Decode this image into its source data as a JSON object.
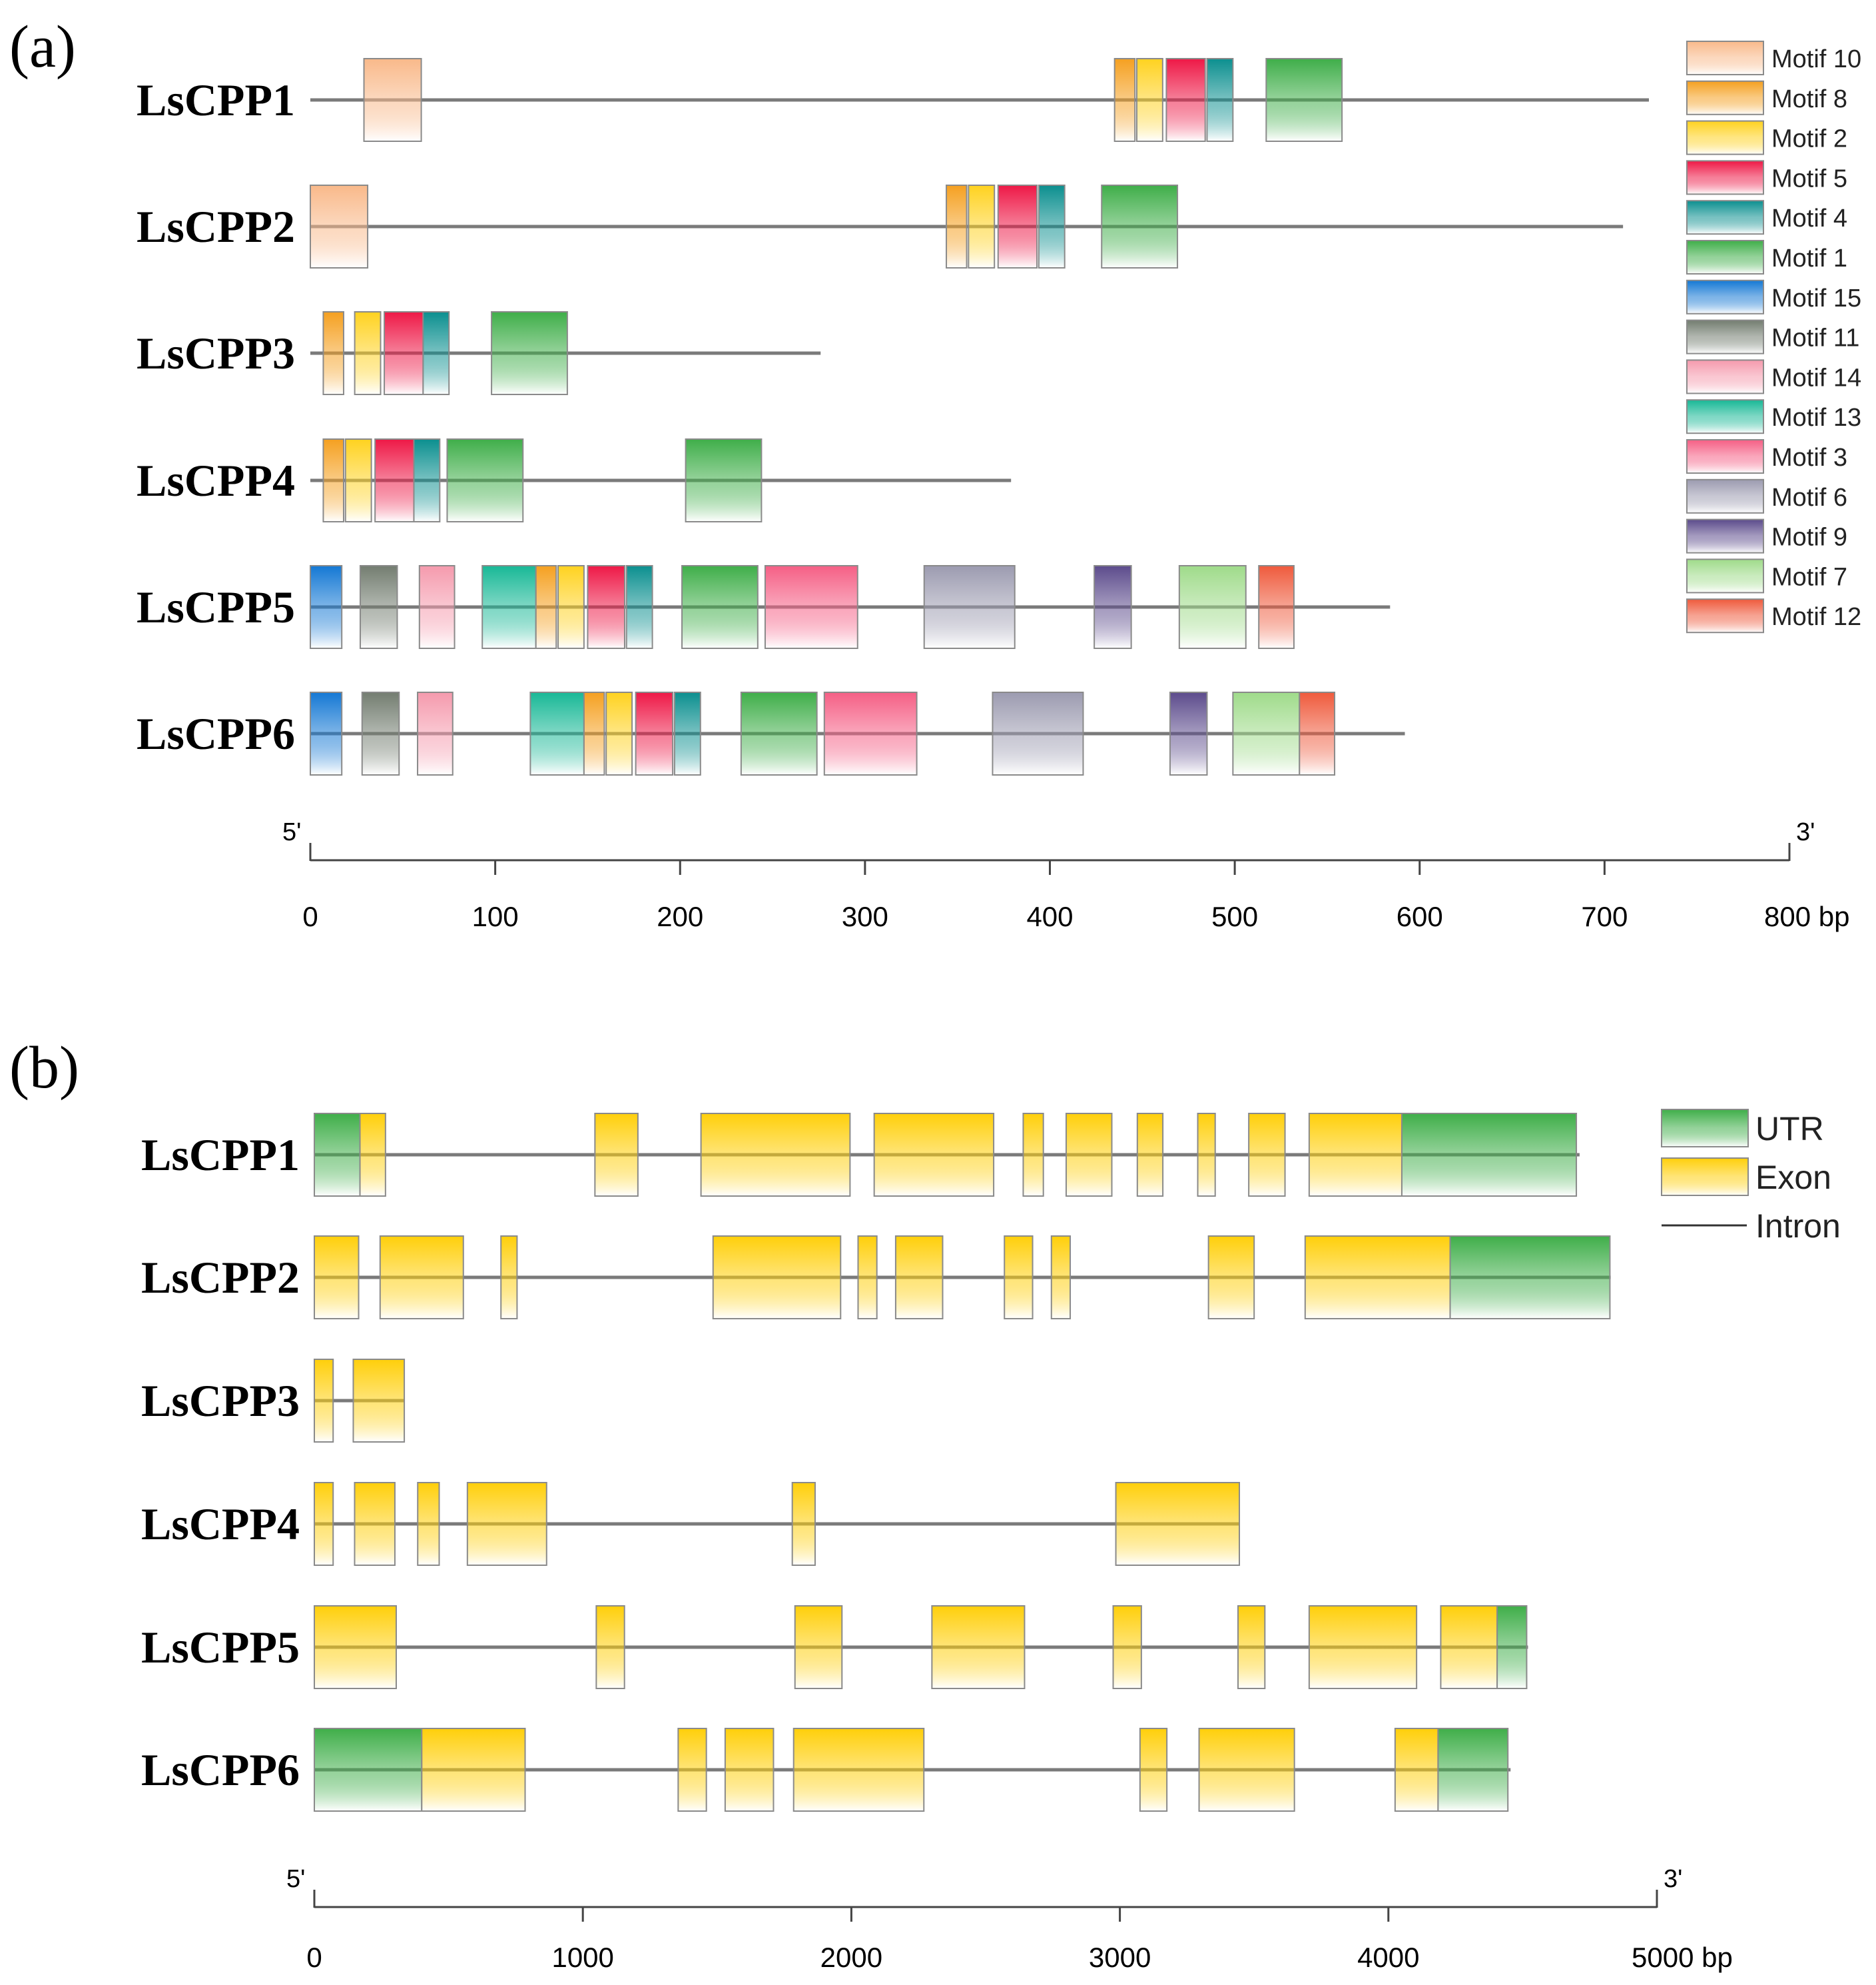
{
  "panel_a": {
    "label": "(a)",
    "axis": {
      "start": 0,
      "end": 800,
      "ticks": [
        0,
        100,
        200,
        300,
        400,
        500,
        600,
        700,
        800
      ],
      "unit": "bp",
      "five_prime": "5'",
      "three_prime": "3'"
    },
    "legend": [
      {
        "name": "Motif 10",
        "color": "#f9b98a"
      },
      {
        "name": "Motif 8",
        "color": "#f5a020"
      },
      {
        "name": "Motif 2",
        "color": "#ffd21f"
      },
      {
        "name": "Motif 5",
        "color": "#ee1846"
      },
      {
        "name": "Motif 4",
        "color": "#0b8f8f"
      },
      {
        "name": "Motif 1",
        "color": "#3fae49"
      },
      {
        "name": "Motif 15",
        "color": "#1478d4"
      },
      {
        "name": "Motif 11",
        "color": "#737d70"
      },
      {
        "name": "Motif 14",
        "color": "#f59aad"
      },
      {
        "name": "Motif 13",
        "color": "#18b896"
      },
      {
        "name": "Motif 3",
        "color": "#f55f85"
      },
      {
        "name": "Motif 6",
        "color": "#9c9bb0"
      },
      {
        "name": "Motif 9",
        "color": "#5c4b8c"
      },
      {
        "name": "Motif 7",
        "color": "#9fdb8a"
      },
      {
        "name": "Motif 12",
        "color": "#ef5a3c"
      }
    ],
    "genes": [
      {
        "name": "LsCPP1",
        "length": 724,
        "motifs": [
          {
            "motif": "Motif 10",
            "start": 29,
            "end": 60
          },
          {
            "motif": "Motif 8",
            "start": 435,
            "end": 446
          },
          {
            "motif": "Motif 2",
            "start": 447,
            "end": 461
          },
          {
            "motif": "Motif 5",
            "start": 463,
            "end": 484
          },
          {
            "motif": "Motif 4",
            "start": 485,
            "end": 499
          },
          {
            "motif": "Motif 1",
            "start": 517,
            "end": 558
          }
        ]
      },
      {
        "name": "LsCPP2",
        "length": 710,
        "motifs": [
          {
            "motif": "Motif 10",
            "start": 0,
            "end": 31
          },
          {
            "motif": "Motif 8",
            "start": 344,
            "end": 355
          },
          {
            "motif": "Motif 2",
            "start": 356,
            "end": 370
          },
          {
            "motif": "Motif 5",
            "start": 372,
            "end": 393
          },
          {
            "motif": "Motif 4",
            "start": 394,
            "end": 408
          },
          {
            "motif": "Motif 1",
            "start": 428,
            "end": 469
          }
        ]
      },
      {
        "name": "LsCPP3",
        "length": 276,
        "motifs": [
          {
            "motif": "Motif 8",
            "start": 7,
            "end": 18
          },
          {
            "motif": "Motif 2",
            "start": 24,
            "end": 38
          },
          {
            "motif": "Motif 5",
            "start": 40,
            "end": 61
          },
          {
            "motif": "Motif 4",
            "start": 61,
            "end": 75
          },
          {
            "motif": "Motif 1",
            "start": 98,
            "end": 139
          }
        ]
      },
      {
        "name": "LsCPP4",
        "length": 379,
        "motifs": [
          {
            "motif": "Motif 8",
            "start": 7,
            "end": 18
          },
          {
            "motif": "Motif 2",
            "start": 19,
            "end": 33
          },
          {
            "motif": "Motif 5",
            "start": 35,
            "end": 56
          },
          {
            "motif": "Motif 4",
            "start": 56,
            "end": 70
          },
          {
            "motif": "Motif 1",
            "start": 74,
            "end": 115
          },
          {
            "motif": "Motif 1",
            "start": 203,
            "end": 244
          }
        ]
      },
      {
        "name": "LsCPP5",
        "length": 584,
        "motifs": [
          {
            "motif": "Motif 15",
            "start": 0,
            "end": 17
          },
          {
            "motif": "Motif 11",
            "start": 27,
            "end": 47
          },
          {
            "motif": "Motif 14",
            "start": 59,
            "end": 78
          },
          {
            "motif": "Motif 13",
            "start": 93,
            "end": 122
          },
          {
            "motif": "Motif 8",
            "start": 122,
            "end": 133
          },
          {
            "motif": "Motif 2",
            "start": 134,
            "end": 148
          },
          {
            "motif": "Motif 5",
            "start": 150,
            "end": 170
          },
          {
            "motif": "Motif 4",
            "start": 171,
            "end": 185
          },
          {
            "motif": "Motif 1",
            "start": 201,
            "end": 242
          },
          {
            "motif": "Motif 3",
            "start": 246,
            "end": 296
          },
          {
            "motif": "Motif 6",
            "start": 332,
            "end": 381
          },
          {
            "motif": "Motif 9",
            "start": 424,
            "end": 444
          },
          {
            "motif": "Motif 7",
            "start": 470,
            "end": 506
          },
          {
            "motif": "Motif 12",
            "start": 513,
            "end": 532
          }
        ]
      },
      {
        "name": "LsCPP6",
        "length": 592,
        "motifs": [
          {
            "motif": "Motif 15",
            "start": 0,
            "end": 17
          },
          {
            "motif": "Motif 11",
            "start": 28,
            "end": 48
          },
          {
            "motif": "Motif 14",
            "start": 58,
            "end": 77
          },
          {
            "motif": "Motif 13",
            "start": 119,
            "end": 148
          },
          {
            "motif": "Motif 8",
            "start": 148,
            "end": 159
          },
          {
            "motif": "Motif 2",
            "start": 160,
            "end": 174
          },
          {
            "motif": "Motif 5",
            "start": 176,
            "end": 196
          },
          {
            "motif": "Motif 4",
            "start": 197,
            "end": 211
          },
          {
            "motif": "Motif 1",
            "start": 233,
            "end": 274
          },
          {
            "motif": "Motif 3",
            "start": 278,
            "end": 328
          },
          {
            "motif": "Motif 6",
            "start": 369,
            "end": 418
          },
          {
            "motif": "Motif 9",
            "start": 465,
            "end": 485
          },
          {
            "motif": "Motif 7",
            "start": 499,
            "end": 535
          },
          {
            "motif": "Motif 12",
            "start": 535,
            "end": 554
          }
        ]
      }
    ]
  },
  "panel_b": {
    "label": "(b)",
    "axis": {
      "start": 0,
      "end": 5000,
      "ticks": [
        0,
        1000,
        2000,
        3000,
        4000,
        5000
      ],
      "unit": "bp",
      "five_prime": "5'",
      "three_prime": "3'"
    },
    "legend": [
      {
        "name": "UTR",
        "type": "UTR",
        "color": "#3fae49"
      },
      {
        "name": "Exon",
        "type": "Exon",
        "color": "#ffcf0a"
      },
      {
        "name": "Intron",
        "type": "Intron",
        "color": "#333333"
      }
    ],
    "genes": [
      {
        "name": "LsCPP1",
        "length": 4712,
        "features": [
          {
            "type": "UTR",
            "start": 0,
            "end": 170
          },
          {
            "type": "Exon",
            "start": 170,
            "end": 265
          },
          {
            "type": "Exon",
            "start": 1045,
            "end": 1205
          },
          {
            "type": "Exon",
            "start": 1440,
            "end": 1995
          },
          {
            "type": "Exon",
            "start": 2085,
            "end": 2530
          },
          {
            "type": "Exon",
            "start": 2640,
            "end": 2715
          },
          {
            "type": "Exon",
            "start": 2800,
            "end": 2970
          },
          {
            "type": "Exon",
            "start": 3065,
            "end": 3160
          },
          {
            "type": "Exon",
            "start": 3290,
            "end": 3355
          },
          {
            "type": "Exon",
            "start": 3480,
            "end": 3615
          },
          {
            "type": "Exon",
            "start": 3705,
            "end": 4050
          },
          {
            "type": "UTR",
            "start": 4050,
            "end": 4700
          }
        ]
      },
      {
        "name": "LsCPP2",
        "length": 4828,
        "features": [
          {
            "type": "Exon",
            "start": 0,
            "end": 165
          },
          {
            "type": "Exon",
            "start": 245,
            "end": 555
          },
          {
            "type": "Exon",
            "start": 695,
            "end": 755
          },
          {
            "type": "Exon",
            "start": 1485,
            "end": 1960
          },
          {
            "type": "Exon",
            "start": 2025,
            "end": 2095
          },
          {
            "type": "Exon",
            "start": 2165,
            "end": 2340
          },
          {
            "type": "Exon",
            "start": 2570,
            "end": 2675
          },
          {
            "type": "Exon",
            "start": 2745,
            "end": 2815
          },
          {
            "type": "Exon",
            "start": 3330,
            "end": 3500
          },
          {
            "type": "Exon",
            "start": 3690,
            "end": 4230
          },
          {
            "type": "UTR",
            "start": 4230,
            "end": 4825
          }
        ]
      },
      {
        "name": "LsCPP3",
        "length": 335,
        "features": [
          {
            "type": "Exon",
            "start": 0,
            "end": 70
          },
          {
            "type": "Exon",
            "start": 145,
            "end": 335
          }
        ]
      },
      {
        "name": "LsCPP4",
        "length": 3445,
        "features": [
          {
            "type": "Exon",
            "start": 0,
            "end": 70
          },
          {
            "type": "Exon",
            "start": 150,
            "end": 300
          },
          {
            "type": "Exon",
            "start": 385,
            "end": 465
          },
          {
            "type": "Exon",
            "start": 570,
            "end": 865
          },
          {
            "type": "Exon",
            "start": 1780,
            "end": 1865
          },
          {
            "type": "Exon",
            "start": 2985,
            "end": 3445
          }
        ]
      },
      {
        "name": "LsCPP5",
        "length": 4520,
        "features": [
          {
            "type": "Exon",
            "start": 0,
            "end": 305
          },
          {
            "type": "Exon",
            "start": 1050,
            "end": 1155
          },
          {
            "type": "Exon",
            "start": 1790,
            "end": 1965
          },
          {
            "type": "Exon",
            "start": 2300,
            "end": 2645
          },
          {
            "type": "Exon",
            "start": 2975,
            "end": 3080
          },
          {
            "type": "Exon",
            "start": 3440,
            "end": 3540
          },
          {
            "type": "Exon",
            "start": 3705,
            "end": 4105
          },
          {
            "type": "Exon",
            "start": 4195,
            "end": 4405
          },
          {
            "type": "UTR",
            "start": 4405,
            "end": 4515
          }
        ]
      },
      {
        "name": "LsCPP6",
        "length": 4455,
        "features": [
          {
            "type": "UTR",
            "start": 0,
            "end": 400
          },
          {
            "type": "Exon",
            "start": 400,
            "end": 785
          },
          {
            "type": "Exon",
            "start": 1355,
            "end": 1460
          },
          {
            "type": "Exon",
            "start": 1530,
            "end": 1710
          },
          {
            "type": "Exon",
            "start": 1785,
            "end": 2270
          },
          {
            "type": "Exon",
            "start": 3075,
            "end": 3175
          },
          {
            "type": "Exon",
            "start": 3295,
            "end": 3650
          },
          {
            "type": "Exon",
            "start": 4025,
            "end": 4185
          },
          {
            "type": "UTR",
            "start": 4185,
            "end": 4445
          }
        ]
      }
    ]
  }
}
